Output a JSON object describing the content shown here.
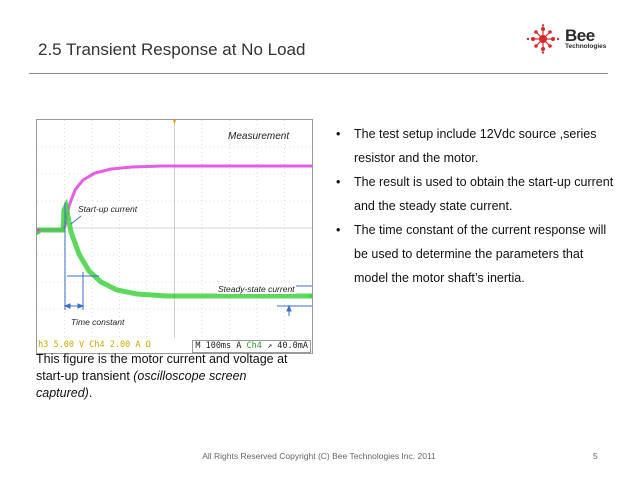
{
  "slide": {
    "title": "2.5 Transient Response at No Load",
    "logo": {
      "name": "Bee",
      "subtitle": "Technologies",
      "mark_color": "#d22b2b"
    },
    "figure": {
      "labels": {
        "measurement": "Measurement",
        "start_up_current": "Start-up current",
        "steady_state_current": "Steady-state current",
        "time_constant": "Time constant"
      },
      "status": {
        "timebase": "M 100ms",
        "trigger_mode": "A",
        "trigger_channel": "Ch4",
        "trigger_slope": "↗",
        "trigger_level": "40.0mA",
        "left_readout": "Ch3  5.00 V    Ch4  2.00 A Ω"
      },
      "trace_colors": {
        "voltage": "#e040e0",
        "current": "#3fd23f"
      }
    },
    "bullets": [
      "The test setup include 12Vdc source ,series resistor and the motor.",
      "The result is used to obtain the start-up current and the steady state current.",
      "The time constant of the current response will be used to determine the parameters that model the motor shaft’s inertia."
    ],
    "bullet_symbol": "•",
    "caption": {
      "text": "This figure is the motor current and voltage at start-up transient ",
      "italic": "(oscilloscope screen captured)",
      "end": "."
    },
    "footer": "All Rights Reserved Copyright (C) Bee Technologies Inc. 2011",
    "page_number": "5"
  }
}
